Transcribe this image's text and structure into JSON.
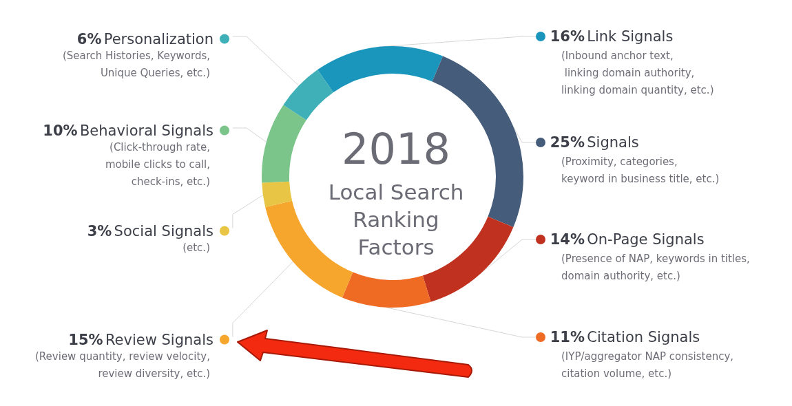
{
  "chart_data": {
    "type": "donut",
    "title": "2018",
    "subtitle": "Local Search\nRanking\nFactors",
    "categories": [
      "Link Signals",
      "Signals",
      "On-Page Signals",
      "Citation Signals",
      "Review Signals",
      "Social Signals",
      "Behavioral Signals",
      "Personalization"
    ],
    "values": [
      16,
      25,
      14,
      11,
      15,
      3,
      10,
      6
    ],
    "colors": [
      "#1a96bd",
      "#455d7a",
      "#c0311f",
      "#ef6a23",
      "#f6a52d",
      "#e8c544",
      "#7bc58b",
      "#40b0b8"
    ],
    "value_labels": [
      "16%",
      "25%",
      "14%",
      "11%",
      "15%",
      "3%",
      "10%",
      "6%"
    ],
    "annotations": [
      "(Inbound anchor text,\n linking domain authority,\nlinking domain quantity, etc.)",
      "(Proximity, categories,\nkeyword in business title, etc.)",
      "(Presence of NAP, keywords in titles,\ndomain authority, etc.)",
      "(IYP/aggregator NAP consistency,\ncitation volume, etc.)",
      "(Review quantity, review velocity,\nreview diversity, etc.)",
      "(etc.)",
      "(Click-through rate,\nmobile clicks to call,\ncheck-ins, etc.)",
      "(Search Histories, Keywords,\nUnique Queries, etc.)"
    ],
    "legend": "left"
  }
}
